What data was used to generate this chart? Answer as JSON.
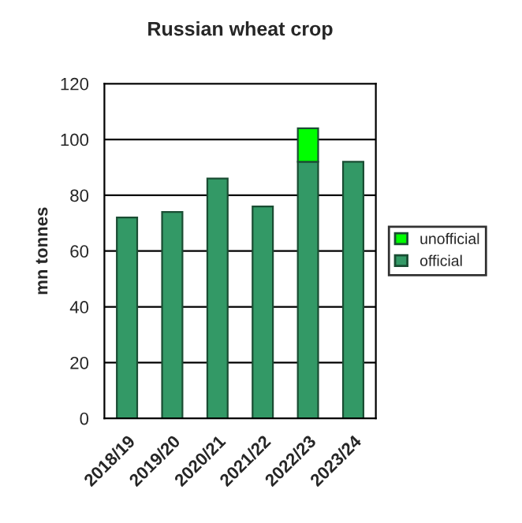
{
  "chart_data": {
    "type": "bar",
    "title": "Russian wheat crop",
    "ylabel": "mn tonnes",
    "categories": [
      "2018/19",
      "2019/20",
      "2020/21",
      "2021/22",
      "2022/23",
      "2023/24"
    ],
    "stacked": true,
    "series": [
      {
        "name": "official",
        "color": "#339966",
        "values": [
          72,
          74,
          86,
          76,
          92,
          92
        ]
      },
      {
        "name": "unofficial",
        "color": "#00ff00",
        "values": [
          null,
          null,
          null,
          null,
          12,
          null
        ]
      }
    ],
    "ylim": [
      0,
      120
    ],
    "yticks": [
      0,
      20,
      40,
      60,
      80,
      100,
      120
    ],
    "grid": "y",
    "legend": "right"
  }
}
